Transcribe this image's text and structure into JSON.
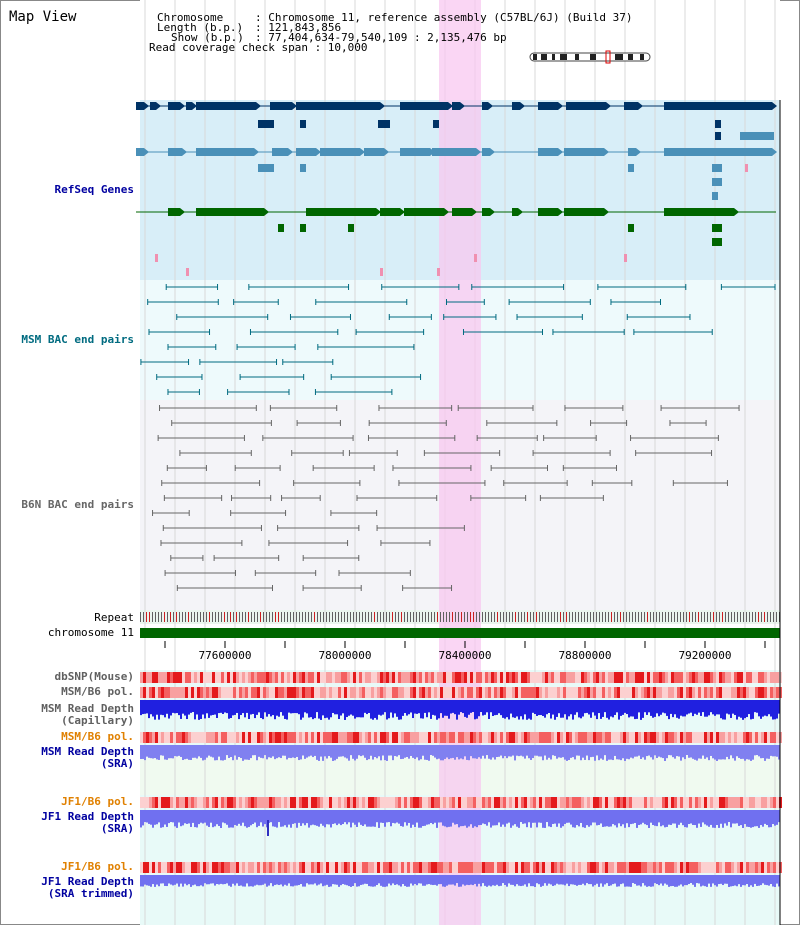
{
  "app": {
    "title": "Map View"
  },
  "header": {
    "chromosome_key": "Chromosome",
    "chromosome_val": ": Chromosome 11, reference assembly (C57BL/6J) (Build 37)",
    "length_key": "Length (b.p.)",
    "length_val": ": 121,843,856",
    "show_key": "Show (b.p.)",
    "show_val": ": 77,404,634-79,540,109 : 2,135,476 bp",
    "coverage_line": "Read coverage check span : 10,000"
  },
  "tracks": {
    "refseq": "RefSeq Genes",
    "msm_bac": "MSM BAC end pairs",
    "b6n_bac": "B6N BAC end pairs",
    "repeat": "Repeat",
    "chromosome": "chromosome 11",
    "dbsnp": "dbSNP(Mouse)",
    "msm_b6_pol": "MSM/B6 pol.",
    "msm_depth_cap_1": "MSM Read Depth",
    "msm_depth_cap_2": "(Capillary)",
    "msm_b6_pol_2": "MSM/B6 pol.",
    "msm_depth_sra_1": "MSM Read Depth",
    "msm_depth_sra_2": "(SRA)",
    "jf1_b6_pol": "JF1/B6 pol.",
    "jf1_depth_sra_1": "JF1 Read Depth",
    "jf1_depth_sra_2": "(SRA)",
    "jf1_b6_pol_2": "JF1/B6 pol.",
    "jf1_depth_trim_1": "JF1 Read Depth",
    "jf1_depth_trim_2": "(SRA trimmed)"
  },
  "axis": {
    "ticks": [
      "77600000",
      "78000000",
      "78400000",
      "78800000",
      "79200000"
    ]
  },
  "colors": {
    "refseq_dark": "#003366",
    "refseq_mid": "#4a90b8",
    "refseq_green": "#006600",
    "msm_bac": "#006b80",
    "b6n_bac": "#666666",
    "highlight": "#f8c8f0",
    "track_label_blue": "#0000a0",
    "track_label_orange": "#e08000"
  }
}
